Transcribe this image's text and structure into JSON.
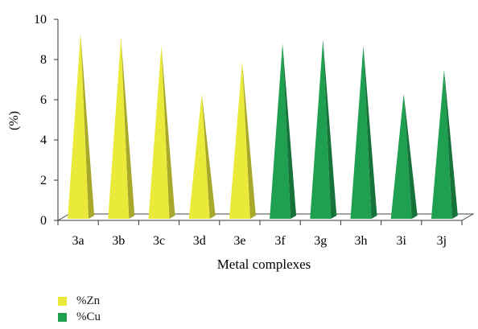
{
  "chart_data": {
    "type": "bar",
    "categories": [
      "3a",
      "3b",
      "3c",
      "3d",
      "3e",
      "3f",
      "3g",
      "3h",
      "3i",
      "3j"
    ],
    "series": [
      {
        "name": "%Zn",
        "color": "#eaea3a",
        "values": [
          9.3,
          9.1,
          8.7,
          6.3,
          7.9,
          null,
          null,
          null,
          null,
          null
        ]
      },
      {
        "name": "%Cu",
        "color": "#1fa050",
        "values": [
          null,
          null,
          null,
          null,
          null,
          8.8,
          9.0,
          8.7,
          6.3,
          7.5
        ]
      }
    ],
    "title": "",
    "xlabel": "Metal complexes",
    "ylabel": "(%)",
    "ylim": [
      0,
      10
    ],
    "yticks": [
      0,
      2,
      4,
      6,
      8,
      10
    ],
    "grid": false,
    "legend_position": "bottom-left",
    "mark_shape": "3d-cone"
  }
}
